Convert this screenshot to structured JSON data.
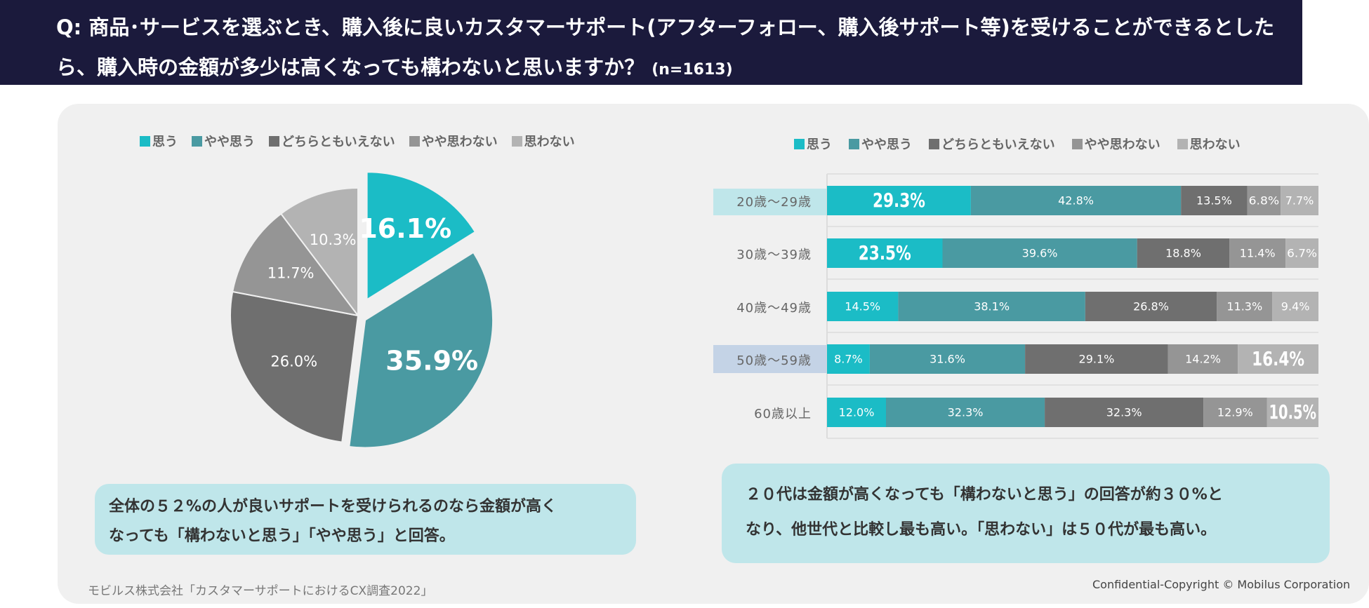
{
  "header": {
    "line1": "Q: 商品･サービスを選ぶとき、購入後に良いカスタマーサポート(アフターフォロー、購入後サポート等)を受けることができるとした",
    "line2": "ら、購入時の金額が多少は高くなっても構わないと思いますか？",
    "n": "(n=1613)"
  },
  "legend": [
    "思う",
    "やや思う",
    "どちらともいえない",
    "やや思わない",
    "思わない"
  ],
  "colors": [
    "#1bbcc6",
    "#4a9aa2",
    "#6f6f6f",
    "#959595",
    "#b3b3b3"
  ],
  "chart_data": [
    {
      "type": "pie",
      "categories": [
        "思う",
        "やや思う",
        "どちらともいえない",
        "やや思わない",
        "思わない"
      ],
      "values": [
        16.1,
        35.9,
        26.0,
        11.7,
        10.3
      ],
      "labels": [
        "16.1%",
        "35.9%",
        "26.0%",
        "11.7%",
        "10.3%"
      ]
    },
    {
      "type": "bar",
      "orientation": "horizontal",
      "stacked": true,
      "categories": [
        "20歳～29歳",
        "30歳～39歳",
        "40歳～49歳",
        "50歳～59歳",
        "60歳以上"
      ],
      "series": [
        {
          "name": "思う",
          "values": [
            29.3,
            23.5,
            14.5,
            8.7,
            12.0
          ],
          "labels": [
            "29.3%",
            "23.5%",
            "14.5%",
            "8.7%",
            "12.0%"
          ]
        },
        {
          "name": "やや思う",
          "values": [
            42.8,
            39.6,
            38.1,
            31.6,
            32.3
          ],
          "labels": [
            "42.8%",
            "39.6%",
            "38.1%",
            "31.6%",
            "32.3%"
          ]
        },
        {
          "name": "どちらともいえない",
          "values": [
            13.5,
            18.8,
            26.8,
            29.1,
            32.3
          ],
          "labels": [
            "13.5%",
            "18.8%",
            "26.8%",
            "29.1%",
            "32.3%"
          ]
        },
        {
          "name": "やや思わない",
          "values": [
            6.8,
            11.4,
            11.3,
            14.2,
            12.9
          ],
          "labels": [
            "6.8%",
            "11.4%",
            "11.3%",
            "14.2%",
            "12.9%"
          ]
        },
        {
          "name": "思わない",
          "values": [
            7.7,
            6.7,
            9.4,
            16.4,
            10.5
          ],
          "labels": [
            "7.7%",
            "6.7%",
            "9.4%",
            "16.4%",
            "10.5%"
          ]
        }
      ],
      "highlighted_categories": [
        "20歳～29歳",
        "50歳～59歳"
      ],
      "emphasized_labels": [
        [
          0,
          0
        ],
        [
          1,
          0
        ],
        [
          3,
          4
        ],
        [
          4,
          4
        ]
      ]
    }
  ],
  "callouts": {
    "left": [
      "全体の５２%の人が良いサポートを受けられるのなら金額が高く",
      "なっても「構わないと思う」「やや思う」と回答。"
    ],
    "right": [
      "２０代は金額が高くなっても「構わないと思う」の回答が約３０%と",
      "なり、他世代と比較し最も高い。「思わない」は５０代が最も高い。"
    ]
  },
  "footer": {
    "source": "モビルス株式会社「カスタマーサポートにおけるCX調査2022」",
    "copyright": "Confidential-Copyright © Mobilus Corporation"
  }
}
